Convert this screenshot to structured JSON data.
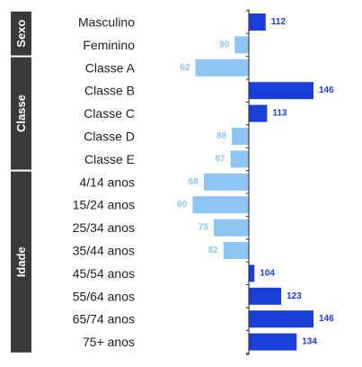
{
  "chart_data": {
    "type": "bar",
    "orientation": "horizontal",
    "baseline": 100,
    "xlim": [
      50,
      150
    ],
    "colors": {
      "above": "#1a3fd6",
      "below": "#8ec5f5",
      "group_bg": "#3a3a3a"
    },
    "groups": [
      {
        "label": "Sexo",
        "categories": [
          "Masculino",
          "Feminino"
        ],
        "values": [
          112,
          90
        ]
      },
      {
        "label": "Classe",
        "categories": [
          "Classe A",
          "Classe B",
          "Classe C",
          "Classe D",
          "Classe E"
        ],
        "values": [
          62,
          146,
          113,
          88,
          87
        ]
      },
      {
        "label": "Idade",
        "categories": [
          "4/14 anos",
          "15/24 anos",
          "25/34 anos",
          "35/44 anos",
          "45/54 anos",
          "55/64 anos",
          "65/74 anos",
          "75+ anos"
        ],
        "values": [
          68,
          60,
          75,
          82,
          104,
          123,
          146,
          134
        ]
      }
    ]
  }
}
